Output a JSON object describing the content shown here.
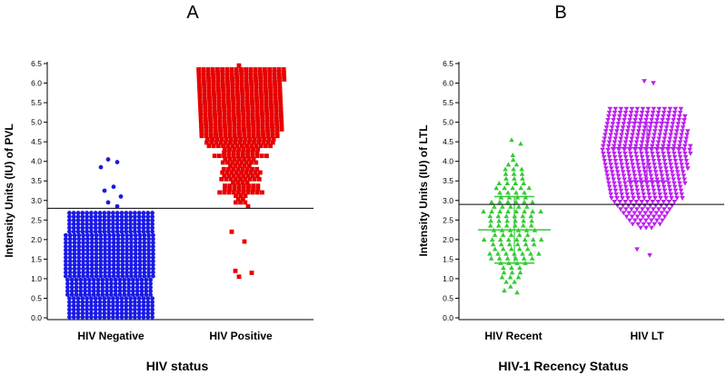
{
  "chart_data": [
    {
      "panel": "A",
      "type": "scatter",
      "xlabel": "HIV status",
      "ylabel": "Intensity Units (IU) of PVL",
      "ylim": [
        0,
        6.5
      ],
      "yticks": [
        "0.0",
        "0.5",
        "1.0",
        "1.5",
        "2.0",
        "2.5",
        "3.0",
        "3.5",
        "4.0",
        "4.5",
        "5.0",
        "5.5",
        "6.0",
        "6.5"
      ],
      "cutoff": 2.8,
      "categories": [
        "HIV Negative",
        "HIV Positive"
      ],
      "series": [
        {
          "name": "HIV Negative",
          "color": "#1a1ae6",
          "marker": "circle",
          "spread": "negative-bulk",
          "outliers": [
            4.05,
            3.98,
            3.85,
            3.35,
            3.25,
            3.1,
            2.95,
            2.85
          ]
        },
        {
          "name": "HIV Positive",
          "color": "#e60000",
          "marker": "square",
          "spread": "positive-bulk",
          "outliers": [
            6.45,
            2.85,
            2.2,
            1.95,
            1.2,
            1.15,
            1.05
          ]
        }
      ]
    },
    {
      "panel": "B",
      "type": "scatter",
      "xlabel": "HIV-1 Recency Status",
      "ylabel": "Intensity Units (IU) of LTL",
      "ylim": [
        0,
        6.5
      ],
      "yticks": [
        "0.0",
        "0.5",
        "1.0",
        "1.5",
        "2.0",
        "2.5",
        "3.0",
        "3.5",
        "4.0",
        "4.5",
        "5.0",
        "5.5",
        "6.0",
        "6.5"
      ],
      "cutoff": 2.9,
      "categories": [
        "HIV Recent",
        "HIV LT"
      ],
      "series": [
        {
          "name": "HIV Recent",
          "color": "#33cc33",
          "marker": "triangle-up",
          "spread": "recent",
          "median": 2.25,
          "q1": 1.4,
          "q3": 3.1,
          "outliers": [
            4.55,
            4.45,
            0.7,
            0.65
          ]
        },
        {
          "name": "HIV LT",
          "color": "#bb22ee",
          "marker": "triangle-down",
          "spread": "longterm",
          "median": 4.35,
          "q1": 3.5,
          "q3": 5.0,
          "outliers": [
            6.05,
            6.0,
            1.75,
            1.6
          ]
        }
      ]
    }
  ]
}
